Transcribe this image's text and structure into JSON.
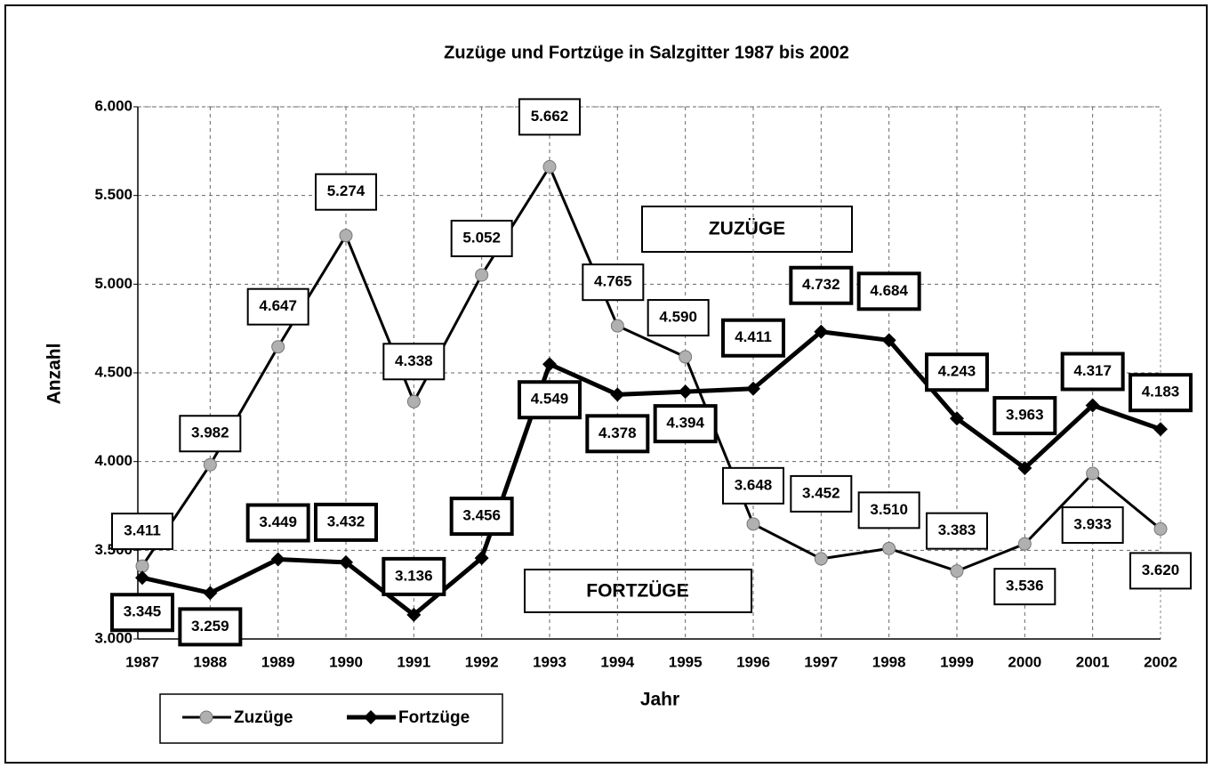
{
  "chart_data": {
    "type": "line",
    "title": "Zuzüge und Fortzüge in Salzgitter 1987 bis 2002",
    "x_label": "Jahr",
    "y_label": "Anzahl",
    "categories": [
      "1987",
      "1988",
      "1989",
      "1990",
      "1991",
      "1992",
      "1993",
      "1994",
      "1995",
      "1996",
      "1997",
      "1998",
      "1999",
      "2000",
      "2001",
      "2002"
    ],
    "series": [
      {
        "name": "Zuzüge",
        "color": "#000000",
        "marker_color": "#b0b0b0",
        "marker": "circle",
        "values": [
          3411,
          3982,
          4647,
          5274,
          4338,
          5052,
          5662,
          4765,
          4590,
          3648,
          3452,
          3510,
          3383,
          3536,
          3933,
          3620
        ],
        "value_labels": [
          "3.411",
          "3.982",
          "4.647",
          "5.274",
          "4.338",
          "5.052",
          "5.662",
          "4.765",
          "4.590",
          "3.648",
          "3.452",
          "3.510",
          "3.383",
          "3.536",
          "3.933",
          "3.620"
        ]
      },
      {
        "name": "Fortzüge",
        "color": "#000000",
        "marker_color": "#000000",
        "marker": "diamond",
        "values": [
          3345,
          3259,
          3449,
          3432,
          3136,
          3456,
          4549,
          4378,
          4394,
          4411,
          4732,
          4684,
          4243,
          3963,
          4317,
          4183
        ],
        "value_labels": [
          "3.345",
          "3.259",
          "3.449",
          "3.432",
          "3.136",
          "3.456",
          "4.549",
          "4.378",
          "4.394",
          "4.411",
          "4.732",
          "4.684",
          "4.243",
          "3.963",
          "4.317",
          "4.183"
        ]
      }
    ],
    "annotations": [
      "ZUZÜGE",
      "FORTZÜGE"
    ],
    "ylim": [
      3000,
      6000
    ],
    "yticks": [
      {
        "value": 3000,
        "label": "3.000"
      },
      {
        "value": 3500,
        "label": "3.500"
      },
      {
        "value": 4000,
        "label": "4.000"
      },
      {
        "value": 4500,
        "label": "4.500"
      },
      {
        "value": 5000,
        "label": "5.000"
      },
      {
        "value": 5500,
        "label": "5.500"
      },
      {
        "value": 6000,
        "label": "6.000"
      }
    ],
    "grid": true,
    "legend": "bottom-left"
  }
}
